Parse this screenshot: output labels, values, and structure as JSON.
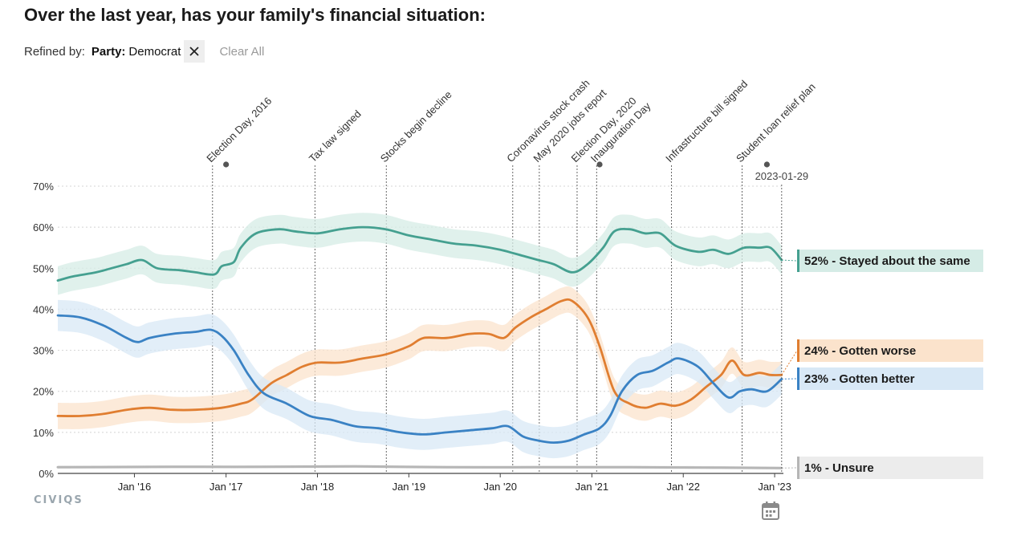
{
  "header": {
    "title": "Over the last year, has your family's financial situation:",
    "refined_by_label": "Refined by:",
    "filter_key": "Party:",
    "filter_value": "Democrat",
    "clear_all": "Clear All"
  },
  "brand": "CIVIQS",
  "icons": {
    "remove_filter": "close-icon",
    "date_picker": "calendar-icon"
  },
  "chart_data": {
    "type": "line",
    "title": "Over the last year, has your family's financial situation:",
    "x_range": [
      "2015-03-01",
      "2023-02-05"
    ],
    "ylim": [
      0,
      70
    ],
    "y_ticks": [
      "0%",
      "10%",
      "20%",
      "30%",
      "40%",
      "50%",
      "60%",
      "70%"
    ],
    "x_ticks": [
      {
        "date": "2016-01-01",
        "label": "Jan '16"
      },
      {
        "date": "2017-01-01",
        "label": "Jan '17"
      },
      {
        "date": "2018-01-01",
        "label": "Jan '18"
      },
      {
        "date": "2019-01-01",
        "label": "Jan '19"
      },
      {
        "date": "2020-01-01",
        "label": "Jan '20"
      },
      {
        "date": "2021-01-01",
        "label": "Jan '21"
      },
      {
        "date": "2022-01-01",
        "label": "Jan '22"
      },
      {
        "date": "2023-01-01",
        "label": "Jan '23"
      }
    ],
    "grid": true,
    "cursor_date": "2023-01-29",
    "events": [
      {
        "date": "2016-11-08",
        "label": "Election Day, 2016"
      },
      {
        "date": "2017-12-22",
        "label": "Tax law signed"
      },
      {
        "date": "2018-10-03",
        "label": "Stocks begin decline"
      },
      {
        "date": "2020-02-20",
        "label": "Coronavirus stock crash"
      },
      {
        "date": "2020-06-05",
        "label": "May 2020 jobs report"
      },
      {
        "date": "2020-11-03",
        "label": "Election Day, 2020"
      },
      {
        "date": "2021-01-20",
        "label": "Inauguration Day"
      },
      {
        "date": "2021-11-15",
        "label": "Infrastructure bill signed"
      },
      {
        "date": "2022-08-24",
        "label": "Student loan relief plan"
      }
    ],
    "marker_dates": [
      "2017-01-01",
      "2021-02-01",
      "2022-12-01"
    ],
    "series": [
      {
        "name": "Stayed about the same",
        "color": "#45a090",
        "band": "#d5ece6",
        "end_label": "52% - Stayed about the same",
        "points": [
          [
            "2015-03-01",
            47
          ],
          [
            "2015-05-01",
            48
          ],
          [
            "2015-08-01",
            49
          ],
          [
            "2015-10-01",
            50
          ],
          [
            "2015-12-01",
            51
          ],
          [
            "2016-02-01",
            52
          ],
          [
            "2016-04-01",
            50
          ],
          [
            "2016-07-01",
            49.5
          ],
          [
            "2016-09-01",
            49
          ],
          [
            "2016-11-15",
            48.5
          ],
          [
            "2016-12-15",
            50.5
          ],
          [
            "2017-02-01",
            51.5
          ],
          [
            "2017-03-01",
            55
          ],
          [
            "2017-05-01",
            58.5
          ],
          [
            "2017-08-01",
            59.5
          ],
          [
            "2017-10-01",
            59
          ],
          [
            "2018-01-01",
            58.5
          ],
          [
            "2018-04-01",
            59.5
          ],
          [
            "2018-07-01",
            60
          ],
          [
            "2018-10-01",
            59.5
          ],
          [
            "2019-01-01",
            58
          ],
          [
            "2019-04-01",
            57
          ],
          [
            "2019-07-01",
            56
          ],
          [
            "2019-10-01",
            55.5
          ],
          [
            "2020-01-01",
            54.5
          ],
          [
            "2020-04-01",
            53
          ],
          [
            "2020-06-01",
            52
          ],
          [
            "2020-08-01",
            51
          ],
          [
            "2020-10-15",
            49
          ],
          [
            "2020-12-15",
            51
          ],
          [
            "2021-02-15",
            55
          ],
          [
            "2021-04-01",
            59
          ],
          [
            "2021-06-01",
            59.5
          ],
          [
            "2021-08-01",
            58.5
          ],
          [
            "2021-10-01",
            58.5
          ],
          [
            "2021-12-01",
            55.5
          ],
          [
            "2022-03-01",
            54
          ],
          [
            "2022-05-01",
            54.5
          ],
          [
            "2022-07-01",
            53.5
          ],
          [
            "2022-09-01",
            55
          ],
          [
            "2022-11-01",
            55
          ],
          [
            "2022-12-15",
            55
          ],
          [
            "2023-01-29",
            52
          ]
        ]
      },
      {
        "name": "Gotten worse",
        "color": "#e07e31",
        "band": "#fbe3cc",
        "end_label": "24% - Gotten worse",
        "points": [
          [
            "2015-03-01",
            14
          ],
          [
            "2015-06-01",
            14
          ],
          [
            "2015-09-01",
            14.5
          ],
          [
            "2015-12-01",
            15.5
          ],
          [
            "2016-03-01",
            16
          ],
          [
            "2016-06-01",
            15.5
          ],
          [
            "2016-09-01",
            15.5
          ],
          [
            "2016-12-15",
            16
          ],
          [
            "2017-03-01",
            17
          ],
          [
            "2017-04-15",
            18
          ],
          [
            "2017-07-01",
            22
          ],
          [
            "2017-09-01",
            24
          ],
          [
            "2017-11-01",
            26
          ],
          [
            "2018-01-01",
            27
          ],
          [
            "2018-04-01",
            27
          ],
          [
            "2018-07-01",
            28
          ],
          [
            "2018-10-01",
            29
          ],
          [
            "2019-01-01",
            31
          ],
          [
            "2019-03-01",
            33
          ],
          [
            "2019-06-01",
            33
          ],
          [
            "2019-09-01",
            34
          ],
          [
            "2019-11-15",
            34
          ],
          [
            "2020-01-15",
            33
          ],
          [
            "2020-03-01",
            35.5
          ],
          [
            "2020-05-01",
            38
          ],
          [
            "2020-07-01",
            40
          ],
          [
            "2020-09-01",
            42
          ],
          [
            "2020-10-15",
            42
          ],
          [
            "2020-12-15",
            38
          ],
          [
            "2021-02-01",
            31
          ],
          [
            "2021-04-01",
            20
          ],
          [
            "2021-06-01",
            17
          ],
          [
            "2021-08-01",
            16
          ],
          [
            "2021-10-01",
            17
          ],
          [
            "2021-12-01",
            16.5
          ],
          [
            "2022-02-01",
            18
          ],
          [
            "2022-04-01",
            21
          ],
          [
            "2022-06-01",
            24
          ],
          [
            "2022-07-15",
            27.5
          ],
          [
            "2022-09-01",
            24
          ],
          [
            "2022-11-01",
            24.5
          ],
          [
            "2022-12-15",
            24
          ],
          [
            "2023-01-29",
            24
          ]
        ]
      },
      {
        "name": "Gotten better",
        "color": "#3a82c4",
        "band": "#d8e8f6",
        "end_label": "23% - Gotten better",
        "points": [
          [
            "2015-03-01",
            38.5
          ],
          [
            "2015-06-01",
            38
          ],
          [
            "2015-09-01",
            36
          ],
          [
            "2015-12-01",
            33
          ],
          [
            "2016-01-15",
            32
          ],
          [
            "2016-03-01",
            33
          ],
          [
            "2016-06-01",
            34
          ],
          [
            "2016-09-01",
            34.5
          ],
          [
            "2016-11-01",
            35
          ],
          [
            "2016-12-15",
            33.5
          ],
          [
            "2017-02-01",
            30
          ],
          [
            "2017-04-01",
            24
          ],
          [
            "2017-06-01",
            19.5
          ],
          [
            "2017-09-01",
            17
          ],
          [
            "2017-12-01",
            14
          ],
          [
            "2018-03-01",
            13
          ],
          [
            "2018-06-01",
            11.5
          ],
          [
            "2018-09-01",
            11
          ],
          [
            "2018-12-01",
            10
          ],
          [
            "2019-03-01",
            9.5
          ],
          [
            "2019-06-01",
            10
          ],
          [
            "2019-09-01",
            10.5
          ],
          [
            "2019-12-01",
            11
          ],
          [
            "2020-02-01",
            11.5
          ],
          [
            "2020-04-01",
            9
          ],
          [
            "2020-06-01",
            8
          ],
          [
            "2020-08-01",
            7.5
          ],
          [
            "2020-10-01",
            8
          ],
          [
            "2020-12-01",
            9.5
          ],
          [
            "2021-02-01",
            11
          ],
          [
            "2021-03-15",
            14
          ],
          [
            "2021-05-01",
            20
          ],
          [
            "2021-07-01",
            24
          ],
          [
            "2021-09-01",
            25
          ],
          [
            "2021-11-01",
            27
          ],
          [
            "2021-12-15",
            28
          ],
          [
            "2022-03-01",
            26
          ],
          [
            "2022-05-01",
            22
          ],
          [
            "2022-07-01",
            18.5
          ],
          [
            "2022-08-15",
            20
          ],
          [
            "2022-10-01",
            20.5
          ],
          [
            "2022-12-01",
            20
          ],
          [
            "2023-01-29",
            23
          ]
        ]
      },
      {
        "name": "Unsure",
        "color": "#b6b6b6",
        "band": "#ececec",
        "end_label": "1% - Unsure",
        "points": [
          [
            "2015-03-01",
            1.5
          ],
          [
            "2016-06-01",
            1.6
          ],
          [
            "2017-06-01",
            1.6
          ],
          [
            "2018-06-01",
            1.7
          ],
          [
            "2019-06-01",
            1.5
          ],
          [
            "2020-06-01",
            1.5
          ],
          [
            "2021-06-01",
            1.5
          ],
          [
            "2022-06-01",
            1.4
          ],
          [
            "2023-01-29",
            1.3
          ]
        ]
      }
    ]
  }
}
